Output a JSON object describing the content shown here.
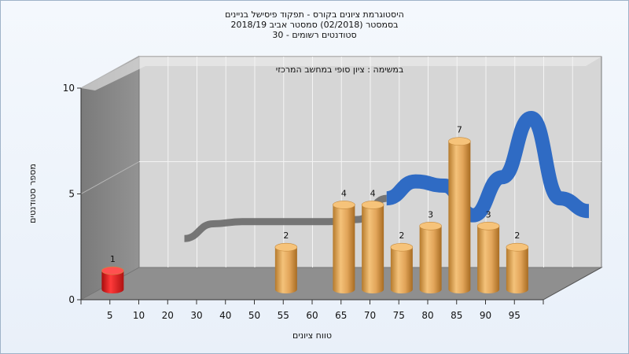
{
  "chart_data": {
    "type": "bar",
    "title_lines": [
      "היסטוגרמת ציונים בקורס - תפקוד פיסישל בניינים",
      "בסמסטר  (02/2018)  סמסטר אביב 2018/19",
      "סטודנטים רשומים - 30"
    ],
    "subtitle": "במשימה : ציון סופי במחשב המרכזי",
    "xlabel": "טווח ציונים",
    "ylabel": "מספר סטודנטים",
    "x_tick_labels": [
      "5",
      "10",
      "20",
      "30",
      "40",
      "50",
      "55",
      "60",
      "65",
      "70",
      "75",
      "80",
      "85",
      "90",
      "95"
    ],
    "y_ticks": [
      0,
      5,
      10
    ],
    "ylim": [
      0,
      10
    ],
    "bars": [
      {
        "bin": "0-10",
        "value": 1,
        "label": "1",
        "color": "#e02020"
      },
      {
        "bin": "55-60",
        "value": 2,
        "label": "2",
        "color": "#e0a050"
      },
      {
        "bin": "65-70",
        "value": 4,
        "label": "4",
        "color": "#e0a050"
      },
      {
        "bin": "70-75",
        "value": 4,
        "label": "4",
        "color": "#e0a050"
      },
      {
        "bin": "75-80",
        "value": 2,
        "label": "2",
        "color": "#e0a050"
      },
      {
        "bin": "80-85",
        "value": 3,
        "label": "3",
        "color": "#e0a050"
      },
      {
        "bin": "85-90",
        "value": 7,
        "label": "7",
        "color": "#e0a050"
      },
      {
        "bin": "90-95",
        "value": 3,
        "label": "3",
        "color": "#e0a050"
      },
      {
        "bin": "95-100",
        "value": 2,
        "label": "2",
        "color": "#e0a050"
      }
    ],
    "trend_curve": {
      "x": [
        10,
        20,
        30,
        40,
        50,
        55,
        60,
        65,
        70,
        75,
        80,
        85,
        90,
        95,
        100
      ],
      "y": [
        1.7,
        2.4,
        2.5,
        2.5,
        2.5,
        2.5,
        2.6,
        3.6,
        4.4,
        4.2,
        2.8,
        4.6,
        7.4,
        3.6,
        3.0
      ],
      "colors": {
        "gray": "#707070",
        "blue": "#2f6bc4"
      }
    },
    "grid": true
  }
}
